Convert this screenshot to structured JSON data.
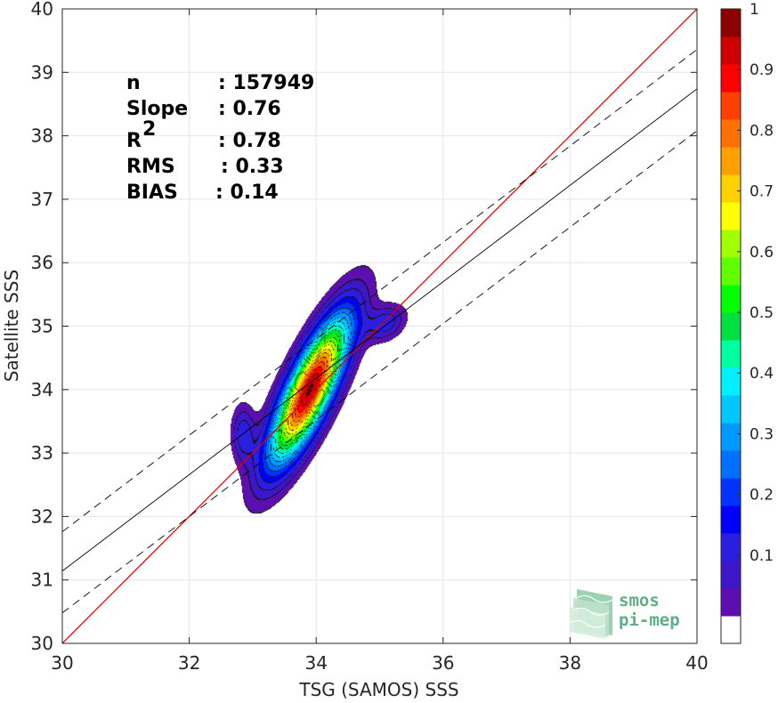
{
  "chart_data": {
    "type": "scatter",
    "subtype": "density-contour",
    "xlabel": "TSG (SAMOS) SSS",
    "ylabel": "Satellite SSS",
    "xlim": [
      30,
      40
    ],
    "ylim": [
      30,
      40
    ],
    "xticks": [
      "30",
      "32",
      "34",
      "36",
      "38",
      "40"
    ],
    "yticks": [
      "30",
      "31",
      "32",
      "33",
      "34",
      "35",
      "36",
      "37",
      "38",
      "39",
      "40"
    ],
    "grid": true,
    "stats": [
      {
        "label": "n",
        "value": ": 157949"
      },
      {
        "label": "Slope",
        "value": ": 0.76"
      },
      {
        "label": "R",
        "sup": "2",
        "value": ": 0.78"
      },
      {
        "label": "RMS",
        "value": ": 0.33"
      },
      {
        "label": "BIAS",
        "value": ": 0.14"
      }
    ],
    "lines": [
      {
        "name": "one-to-one",
        "color": "#e00000",
        "style": "solid",
        "slope": 1,
        "intercept": 0
      },
      {
        "name": "regression",
        "color": "#000000",
        "style": "solid",
        "slope": 0.76,
        "intercept": 8.34
      },
      {
        "name": "regression-upper",
        "color": "#000000",
        "style": "dashed",
        "slope": 0.76,
        "intercept": 8.96
      },
      {
        "name": "regression-lower",
        "color": "#000000",
        "style": "dashed",
        "slope": 0.76,
        "intercept": 7.68
      }
    ],
    "density_peaks": [
      {
        "x": 33.9,
        "y": 34.0,
        "sx": 0.43,
        "sy": 0.8,
        "rho": 0.8,
        "amp": 1.0
      },
      {
        "x": 35.1,
        "y": 35.05,
        "sx": 0.22,
        "sy": 0.2,
        "rho": 0.3,
        "amp": 0.17
      },
      {
        "x": 32.85,
        "y": 33.3,
        "sx": 0.13,
        "sy": 0.32,
        "rho": 0.0,
        "amp": 0.17
      }
    ],
    "colorbar": {
      "ticks": [
        "0.1",
        "0.2",
        "0.3",
        "0.4",
        "0.5",
        "0.6",
        "0.7",
        "0.8",
        "0.9",
        "1"
      ],
      "range": [
        0,
        1
      ],
      "levels": 20,
      "colors": [
        "#ffffff",
        "#5c0fb0",
        "#3c16c8",
        "#2a1ee0",
        "#0000ff",
        "#0033ff",
        "#0070ff",
        "#0099ff",
        "#00c8ff",
        "#00f0ff",
        "#00ffa0",
        "#00e040",
        "#00ff00",
        "#60ff00",
        "#a0ff00",
        "#ffff00",
        "#ffd000",
        "#ffa000",
        "#ff7000",
        "#ff4000",
        "#ff0000",
        "#d00000",
        "#8b0000"
      ]
    }
  },
  "logo": {
    "line1": "smos",
    "line2": "pi-mep",
    "color": "#5fae85"
  }
}
